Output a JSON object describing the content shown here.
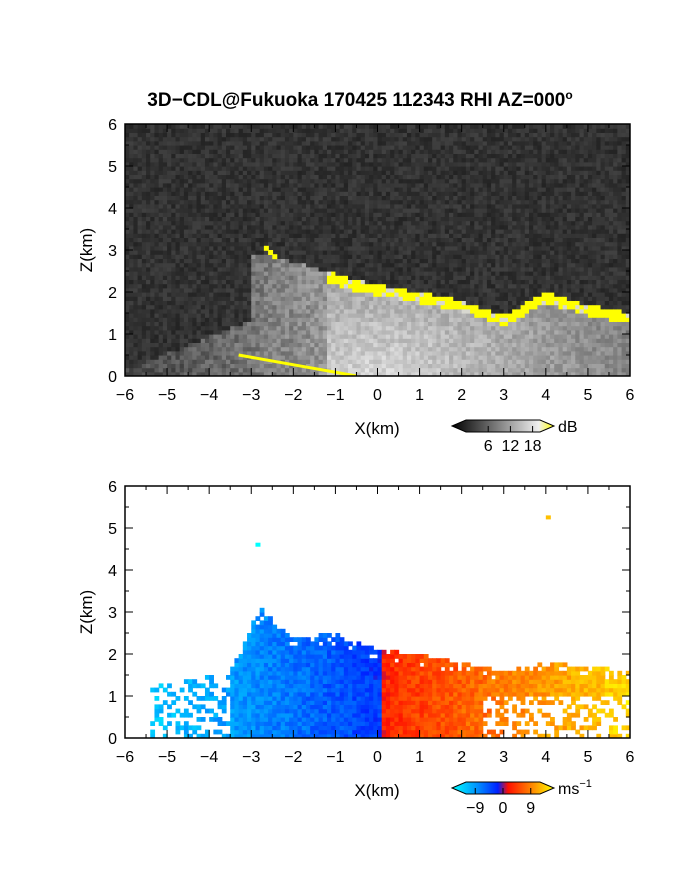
{
  "figure": {
    "title": "3D−CDL@Fukuoka 170425 112343 RHI AZ=000",
    "title_sup": "o"
  },
  "colors": {
    "panel_background": "#2b2b2b",
    "yellow_highlight": "#ffff00",
    "cyan": "#00ffff",
    "blue": "#0040ff",
    "red": "#ff2000",
    "orange": "#ff9900"
  },
  "chart_data": [
    {
      "id": "intensity",
      "type": "heatmap",
      "xlabel": "X(km)",
      "ylabel": "Z(km)",
      "xlim": [
        -6,
        6
      ],
      "ylim": [
        0,
        6
      ],
      "x_ticks": [
        "−6",
        "−5",
        "−4",
        "−3",
        "−2",
        "−1",
        "0",
        "1",
        "2",
        "3",
        "4",
        "5",
        "6"
      ],
      "y_ticks": [
        "0",
        "1",
        "2",
        "3",
        "4",
        "5",
        "6"
      ],
      "colorbar": {
        "label": "dB",
        "ticks": [
          "6",
          "12",
          "18"
        ],
        "range": [
          0,
          20
        ],
        "colormap": "gray-to-yellow"
      },
      "features": {
        "echo_top_km": [
          [
            -2.6,
            2.9
          ],
          [
            -1.2,
            2.5
          ],
          [
            -0.6,
            2.3
          ],
          [
            0.2,
            2.15
          ],
          [
            1,
            2.0
          ],
          [
            2,
            1.8
          ],
          [
            3,
            1.45
          ],
          [
            4,
            2.0
          ],
          [
            5,
            1.7
          ],
          [
            6,
            1.5
          ]
        ],
        "yellow_band_thickness_km": 0.25,
        "low_level_line_km": [
          [
            -3.3,
            0.5
          ],
          [
            -0.5,
            0.0
          ]
        ]
      }
    },
    {
      "id": "velocity",
      "type": "heatmap",
      "xlabel": "X(km)",
      "ylabel": "Z(km)",
      "xlim": [
        -6,
        6
      ],
      "ylim": [
        0,
        6
      ],
      "x_ticks": [
        "−6",
        "−5",
        "−4",
        "−3",
        "−2",
        "−1",
        "0",
        "1",
        "2",
        "3",
        "4",
        "5",
        "6"
      ],
      "y_ticks": [
        "0",
        "1",
        "2",
        "3",
        "4",
        "5",
        "6"
      ],
      "colorbar": {
        "label": "ms",
        "label_sup": "−1",
        "ticks": [
          "−9",
          "0",
          "9"
        ],
        "range": [
          -12,
          12
        ],
        "colormap": "cyan-blue-red-yellow"
      },
      "features": {
        "negative_region_x_km": [
          -5.4,
          0.1
        ],
        "positive_region_x_km": [
          0.1,
          6.0
        ],
        "top_km": [
          [
            -5.4,
            1.2
          ],
          [
            -3.5,
            1.6
          ],
          [
            -2.8,
            3.1
          ],
          [
            -2,
            2.4
          ],
          [
            -1,
            2.5
          ],
          [
            0,
            2.1
          ],
          [
            1,
            2.0
          ],
          [
            2,
            1.8
          ],
          [
            3,
            1.6
          ],
          [
            4,
            1.8
          ],
          [
            5,
            1.7
          ],
          [
            6,
            1.6
          ]
        ],
        "isolated_points_km": [
          [
            -2.9,
            4.65
          ],
          [
            4.0,
            5.3
          ]
        ]
      }
    }
  ]
}
